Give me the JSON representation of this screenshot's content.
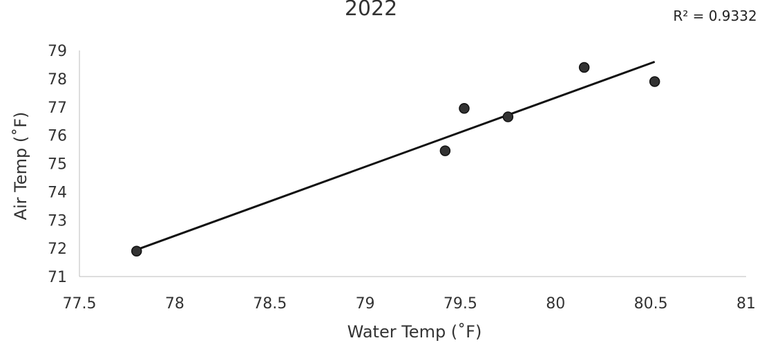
{
  "chart_data": {
    "type": "scatter",
    "title": "2022",
    "xlabel": "Water Temp (˚F)",
    "ylabel": "Air Temp (˚F)",
    "xlim": [
      77.5,
      81
    ],
    "ylim": [
      71,
      79
    ],
    "x_ticks": [
      "77.5",
      "78",
      "78.5",
      "79",
      "79.5",
      "80",
      "80.5",
      "81"
    ],
    "y_ticks": [
      "71",
      "72",
      "73",
      "74",
      "75",
      "76",
      "77",
      "78",
      "79"
    ],
    "series": [
      {
        "points": [
          {
            "x": 77.8,
            "y": 71.9
          },
          {
            "x": 79.42,
            "y": 75.45
          },
          {
            "x": 79.52,
            "y": 76.95
          },
          {
            "x": 79.75,
            "y": 76.65
          },
          {
            "x": 80.15,
            "y": 78.4
          },
          {
            "x": 80.52,
            "y": 77.9
          }
        ],
        "color": "#333333"
      }
    ],
    "trendline": {
      "type": "linear",
      "x_start": 77.8,
      "y_start": 71.95,
      "x_end": 80.52,
      "y_end": 78.6,
      "color": "#111111"
    },
    "annotation": "R² = 0.9332",
    "grid": false,
    "legend": "none"
  }
}
